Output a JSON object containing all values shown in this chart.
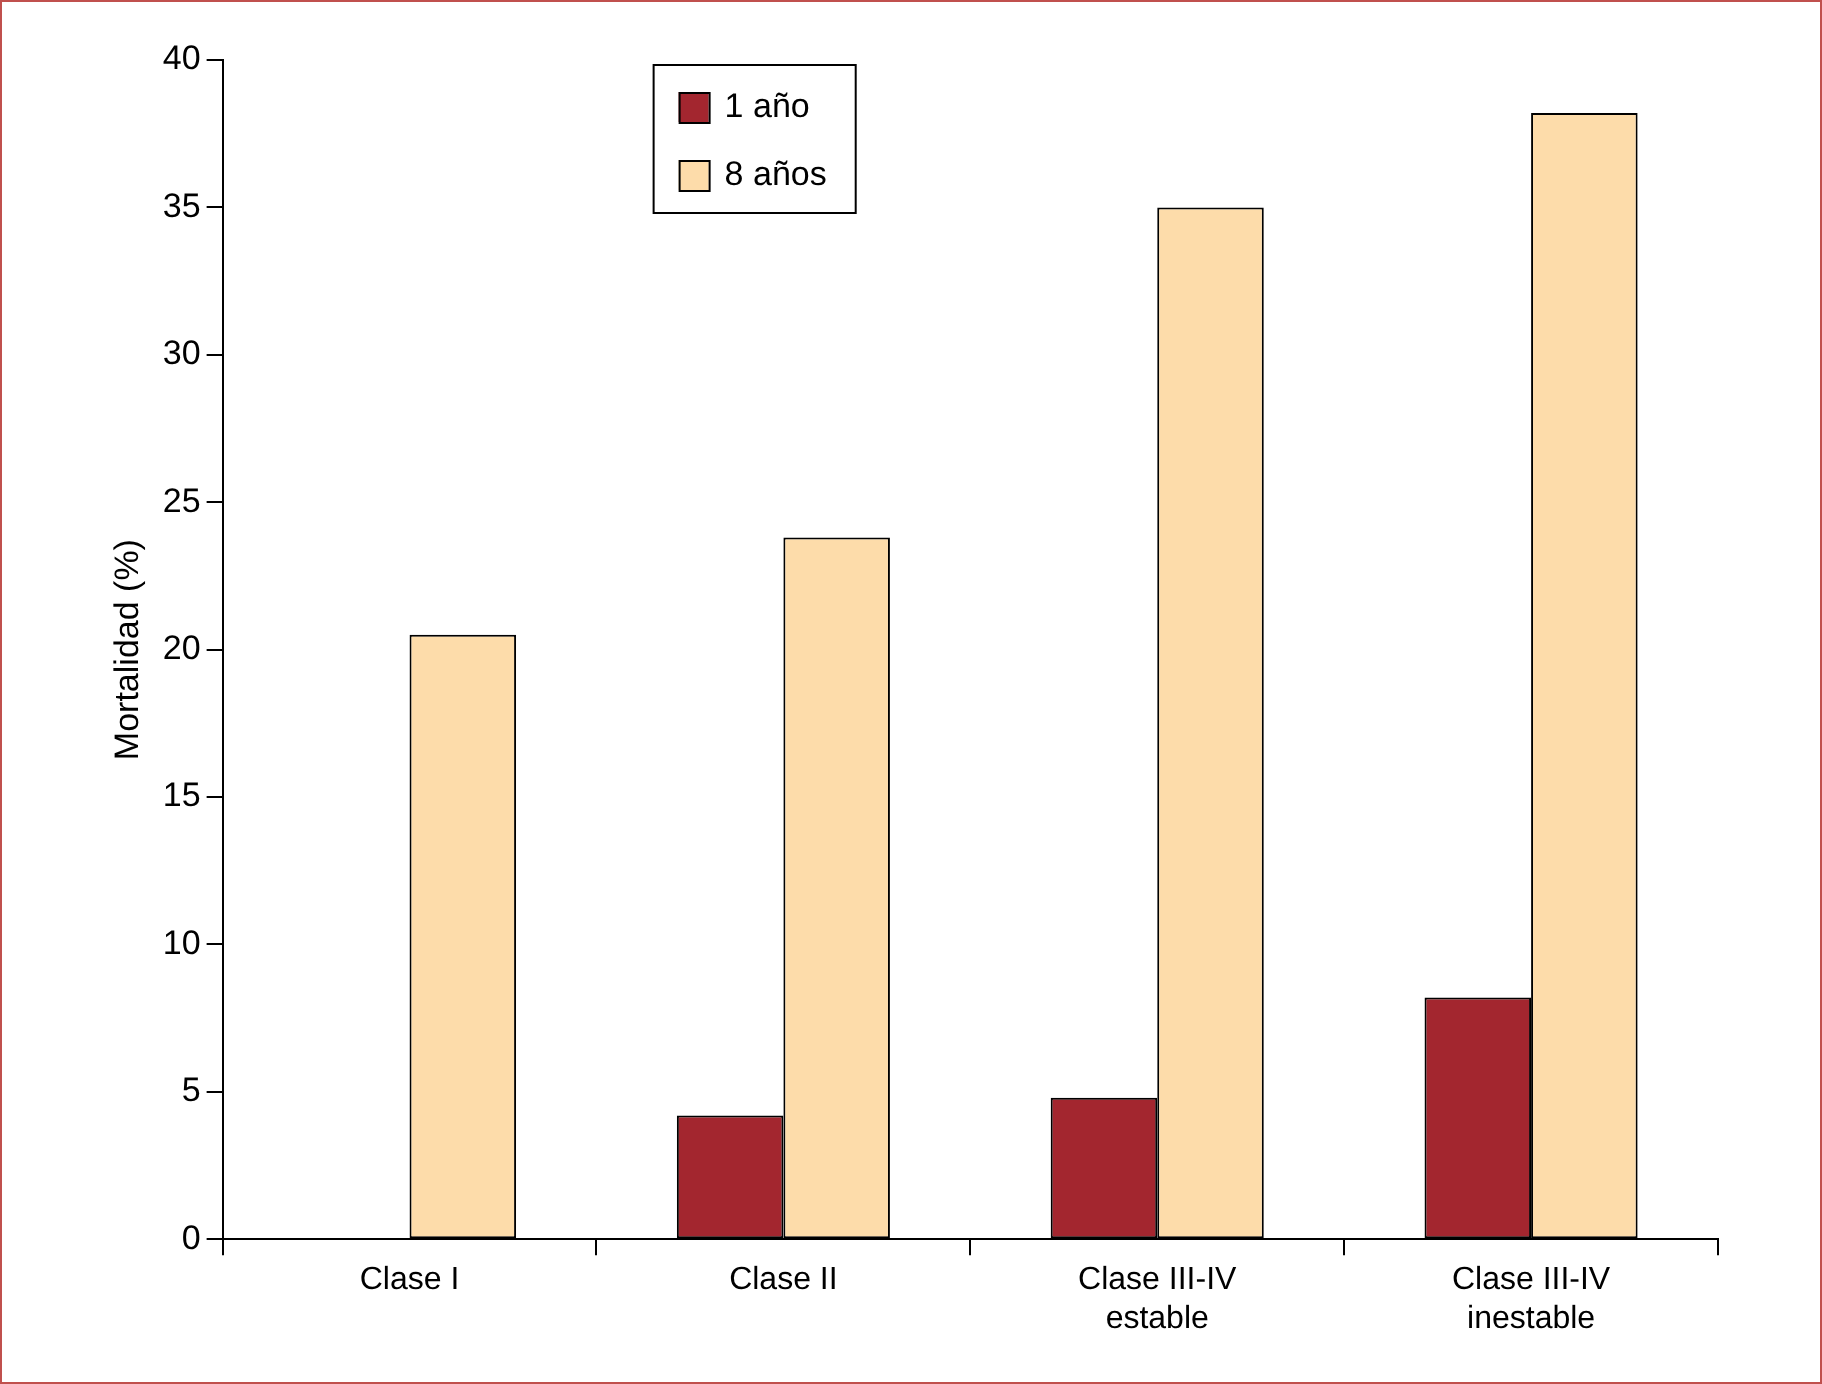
{
  "chart_data": {
    "type": "bar",
    "ylabel": "Mortalidad (%)",
    "categories": [
      "Clase I",
      "Clase II",
      "Clase III-IV estable",
      "Clase III-IV inestable"
    ],
    "series": [
      {
        "name": "1 año",
        "color": "#a3262f",
        "values": [
          null,
          4.2,
          4.8,
          8.2
        ]
      },
      {
        "name": "8 años",
        "color": "#fddcaa",
        "values": [
          20.5,
          23.8,
          35.0,
          38.2
        ]
      }
    ],
    "ylim": [
      0,
      40
    ],
    "yticks": [
      0,
      5,
      10,
      15,
      20,
      25,
      30,
      35,
      40
    ],
    "grid": false,
    "legend": "top"
  }
}
